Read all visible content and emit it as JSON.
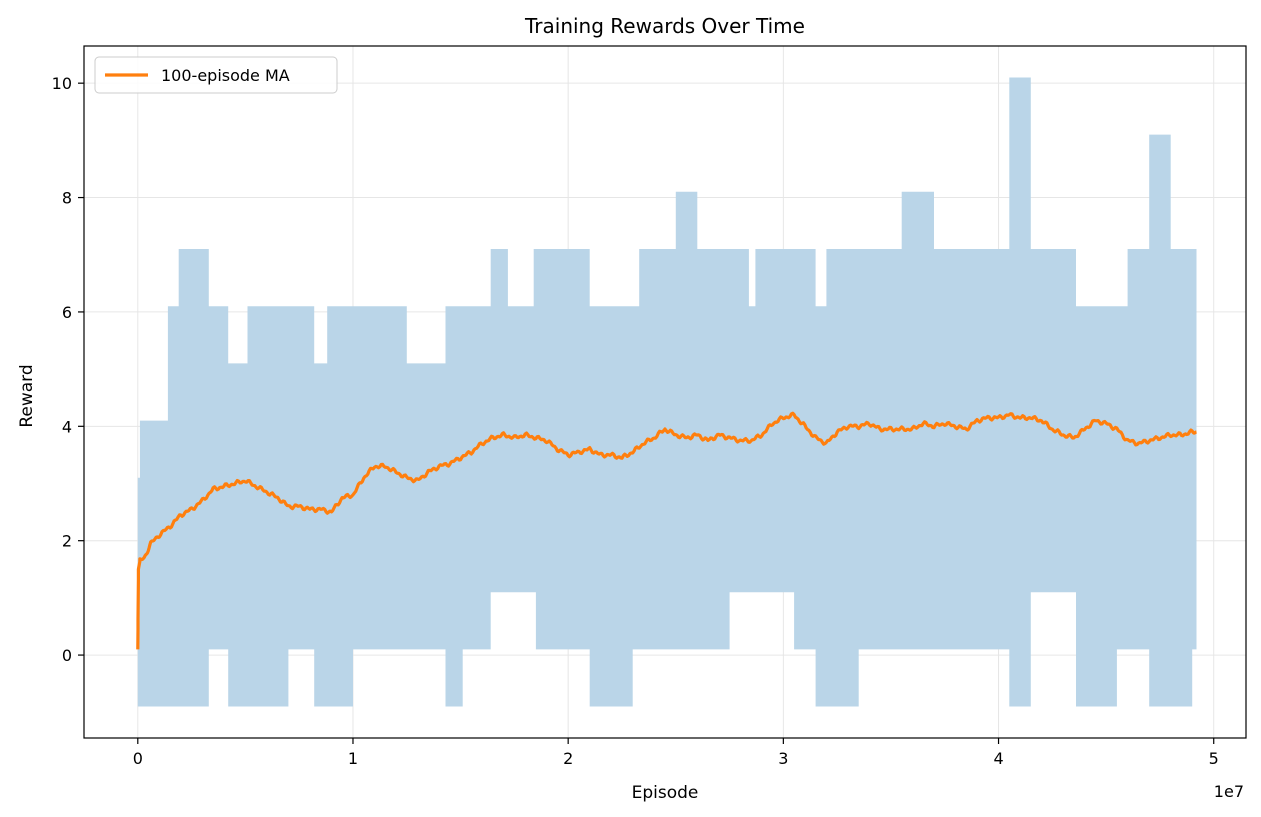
{
  "chart_data": {
    "type": "line",
    "title": "Training Rewards Over Time",
    "xlabel": "Episode",
    "ylabel": "Reward",
    "x_scale_label": "1e7",
    "xlim": [
      -0.25,
      5.15
    ],
    "ylim": [
      -1.45,
      10.65
    ],
    "x_ticks": [
      0,
      1,
      2,
      3,
      4,
      5
    ],
    "x_tick_labels": [
      "0",
      "1",
      "2",
      "3",
      "4",
      "5"
    ],
    "y_ticks": [
      0,
      2,
      4,
      6,
      8,
      10
    ],
    "y_tick_labels": [
      "0",
      "2",
      "4",
      "6",
      "8",
      "10"
    ],
    "grid": true,
    "legend": {
      "placement": "top-left",
      "entries": [
        "100-episode MA"
      ]
    },
    "colors": {
      "band": "#bad5e8",
      "ma_line": "#ff7f0e",
      "grid": "#e6e6e6",
      "axis": "#000000"
    },
    "band": {
      "description": "episode reward min/max envelope",
      "x": [
        0.0,
        0.01,
        0.14,
        0.19,
        0.33,
        0.42,
        0.51,
        0.7,
        0.82,
        0.88,
        1.0,
        1.25,
        1.43,
        1.51,
        1.64,
        1.72,
        1.84,
        1.85,
        2.1,
        2.17,
        2.3,
        2.33,
        2.4,
        2.5,
        2.6,
        2.75,
        2.84,
        2.87,
        3.05,
        3.15,
        3.2,
        3.35,
        3.4,
        3.5,
        3.55,
        3.7,
        3.95,
        4.05,
        4.15,
        4.25,
        4.36,
        4.55,
        4.6,
        4.7,
        4.8,
        4.9,
        4.92
      ],
      "upper": [
        3.1,
        4.1,
        6.1,
        7.1,
        6.1,
        5.1,
        6.1,
        6.1,
        5.1,
        6.1,
        6.1,
        5.1,
        6.1,
        6.1,
        7.1,
        6.1,
        7.1,
        7.1,
        6.1,
        6.1,
        6.1,
        7.1,
        7.1,
        8.1,
        7.1,
        7.1,
        6.1,
        7.1,
        7.1,
        6.1,
        7.1,
        7.1,
        7.1,
        7.1,
        8.1,
        7.1,
        7.1,
        10.1,
        7.1,
        7.1,
        6.1,
        6.1,
        7.1,
        9.1,
        7.1,
        7.1,
        7.1
      ],
      "lower": [
        -0.9,
        -0.9,
        -0.9,
        -0.9,
        0.1,
        -0.9,
        -0.9,
        0.1,
        -0.9,
        -0.9,
        0.1,
        0.1,
        -0.9,
        0.1,
        1.1,
        1.1,
        1.1,
        0.1,
        -0.9,
        -0.9,
        0.1,
        0.1,
        0.1,
        0.1,
        0.1,
        1.1,
        1.1,
        1.1,
        0.1,
        -0.9,
        -0.9,
        0.1,
        0.1,
        0.1,
        0.1,
        0.1,
        0.1,
        -0.9,
        1.1,
        1.1,
        -0.9,
        0.1,
        0.1,
        -0.9,
        -0.9,
        0.1,
        0.1
      ]
    },
    "series": [
      {
        "name": "100-episode MA",
        "x": [
          0.0,
          0.003,
          0.01,
          0.03,
          0.06,
          0.1,
          0.15,
          0.2,
          0.25,
          0.3,
          0.35,
          0.4,
          0.45,
          0.5,
          0.55,
          0.6,
          0.65,
          0.7,
          0.75,
          0.8,
          0.85,
          0.9,
          0.95,
          1.0,
          1.05,
          1.1,
          1.15,
          1.2,
          1.25,
          1.3,
          1.35,
          1.4,
          1.45,
          1.5,
          1.55,
          1.6,
          1.65,
          1.7,
          1.75,
          1.8,
          1.85,
          1.9,
          1.95,
          2.0,
          2.05,
          2.1,
          2.15,
          2.2,
          2.25,
          2.3,
          2.35,
          2.4,
          2.45,
          2.5,
          2.55,
          2.6,
          2.65,
          2.7,
          2.75,
          2.8,
          2.85,
          2.9,
          2.95,
          3.0,
          3.05,
          3.1,
          3.15,
          3.2,
          3.25,
          3.3,
          3.35,
          3.4,
          3.45,
          3.5,
          3.55,
          3.6,
          3.65,
          3.7,
          3.75,
          3.8,
          3.85,
          3.9,
          3.95,
          4.0,
          4.05,
          4.1,
          4.15,
          4.2,
          4.25,
          4.3,
          4.35,
          4.4,
          4.45,
          4.5,
          4.55,
          4.6,
          4.65,
          4.7,
          4.75,
          4.8,
          4.85,
          4.9,
          4.92
        ],
        "values": [
          0.1,
          1.5,
          1.65,
          1.7,
          1.95,
          2.1,
          2.25,
          2.45,
          2.55,
          2.7,
          2.9,
          2.95,
          3.0,
          3.05,
          2.95,
          2.85,
          2.75,
          2.6,
          2.6,
          2.55,
          2.55,
          2.5,
          2.75,
          2.8,
          3.1,
          3.3,
          3.3,
          3.2,
          3.1,
          3.05,
          3.2,
          3.3,
          3.35,
          3.45,
          3.55,
          3.7,
          3.8,
          3.85,
          3.8,
          3.85,
          3.8,
          3.75,
          3.6,
          3.5,
          3.55,
          3.6,
          3.5,
          3.5,
          3.45,
          3.55,
          3.7,
          3.8,
          3.95,
          3.85,
          3.8,
          3.85,
          3.75,
          3.85,
          3.8,
          3.75,
          3.75,
          3.85,
          4.05,
          4.15,
          4.2,
          4.0,
          3.8,
          3.7,
          3.9,
          4.0,
          4.0,
          4.05,
          3.95,
          3.95,
          3.95,
          3.95,
          4.05,
          4.0,
          4.05,
          4.0,
          3.95,
          4.1,
          4.15,
          4.15,
          4.2,
          4.15,
          4.15,
          4.1,
          3.95,
          3.85,
          3.8,
          3.95,
          4.1,
          4.05,
          3.95,
          3.75,
          3.7,
          3.75,
          3.8,
          3.85,
          3.85,
          3.9,
          3.9
        ]
      }
    ]
  }
}
